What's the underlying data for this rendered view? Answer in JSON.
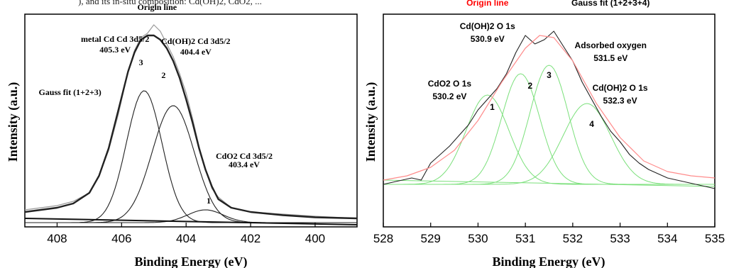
{
  "header_caption": "), and its in-situ composition: Cd(OH)2, CdO2, ...",
  "chart_data": [
    {
      "type": "line",
      "panel": "left",
      "title": "",
      "xlabel": "Binding Energy (eV)",
      "ylabel": "Intensity (a.u.)",
      "xlim": [
        409,
        398.7
      ],
      "x_reversed": true,
      "ylim": [
        0,
        1
      ],
      "y_ticks_shown": false,
      "x_ticks": [
        "408",
        "406",
        "404",
        "402",
        "400"
      ],
      "x_tick_values": [
        408,
        406,
        404,
        402,
        400
      ],
      "grid": false,
      "series": [
        {
          "name": "Origin line",
          "points": [
            [
              409.0,
              0.08
            ],
            [
              408.5,
              0.09
            ],
            [
              408.0,
              0.1
            ],
            [
              407.5,
              0.12
            ],
            [
              407.0,
              0.16
            ],
            [
              406.7,
              0.24
            ],
            [
              406.4,
              0.36
            ],
            [
              406.1,
              0.53
            ],
            [
              405.8,
              0.73
            ],
            [
              405.6,
              0.83
            ],
            [
              405.4,
              0.89
            ],
            [
              405.2,
              0.91
            ],
            [
              405.0,
              0.95
            ],
            [
              404.8,
              0.92
            ],
            [
              404.6,
              0.86
            ],
            [
              404.4,
              0.8
            ],
            [
              404.2,
              0.72
            ],
            [
              404.0,
              0.63
            ],
            [
              403.8,
              0.51
            ],
            [
              403.6,
              0.38
            ],
            [
              403.4,
              0.27
            ],
            [
              403.2,
              0.18
            ],
            [
              403.0,
              0.14
            ],
            [
              402.6,
              0.09
            ],
            [
              402.0,
              0.07
            ],
            [
              401.0,
              0.06
            ],
            [
              400.0,
              0.05
            ],
            [
              398.7,
              0.04
            ]
          ]
        },
        {
          "name": "Gauss fit (1+2+3)",
          "points": [
            [
              409.0,
              0.07
            ],
            [
              408.5,
              0.08
            ],
            [
              408.0,
              0.09
            ],
            [
              407.5,
              0.11
            ],
            [
              407.0,
              0.16
            ],
            [
              406.7,
              0.24
            ],
            [
              406.4,
              0.37
            ],
            [
              406.1,
              0.55
            ],
            [
              405.8,
              0.73
            ],
            [
              405.6,
              0.82
            ],
            [
              405.4,
              0.88
            ],
            [
              405.2,
              0.9
            ],
            [
              405.0,
              0.9
            ],
            [
              404.8,
              0.88
            ],
            [
              404.6,
              0.84
            ],
            [
              404.4,
              0.78
            ],
            [
              404.2,
              0.7
            ],
            [
              404.0,
              0.6
            ],
            [
              403.8,
              0.49
            ],
            [
              403.6,
              0.37
            ],
            [
              403.4,
              0.27
            ],
            [
              403.2,
              0.19
            ],
            [
              403.0,
              0.13
            ],
            [
              402.6,
              0.09
            ],
            [
              402.0,
              0.07
            ],
            [
              401.0,
              0.055
            ],
            [
              400.0,
              0.045
            ],
            [
              398.7,
              0.04
            ]
          ]
        },
        {
          "name": "1",
          "peak": {
            "center": 403.4,
            "height": 0.06,
            "width": 0.55
          }
        },
        {
          "name": "2",
          "peak": {
            "center": 404.4,
            "height": 0.55,
            "width": 0.65
          }
        },
        {
          "name": "3",
          "peak": {
            "center": 405.3,
            "height": 0.62,
            "width": 0.55
          }
        }
      ],
      "annotations": [
        {
          "text": "Origin line",
          "x": 404.9,
          "y": 1.02
        },
        {
          "text": "metal Cd  Cd 3d5/2",
          "x": 406.2,
          "y": 0.87
        },
        {
          "text": "405.3 eV",
          "x": 406.2,
          "y": 0.82
        },
        {
          "text": "Cd(OH)2  Cd 3d5/2",
          "x": 403.7,
          "y": 0.86
        },
        {
          "text": "404.4 eV",
          "x": 403.7,
          "y": 0.81
        },
        {
          "text": "Gauss fit (1+2+3)",
          "x": 407.6,
          "y": 0.62
        },
        {
          "text": "CdO2  Cd 3d5/2",
          "x": 402.2,
          "y": 0.32
        },
        {
          "text": "403.4 eV",
          "x": 402.2,
          "y": 0.28
        },
        {
          "text": "1",
          "x": 403.3,
          "y": 0.11
        },
        {
          "text": "2",
          "x": 404.7,
          "y": 0.7
        },
        {
          "text": "3",
          "x": 405.4,
          "y": 0.76
        }
      ]
    },
    {
      "type": "line",
      "panel": "right",
      "title": "",
      "xlabel": "Binding Energy (eV)",
      "ylabel": "Intensity (a.u.)",
      "xlim": [
        528,
        535
      ],
      "ylim": [
        0,
        1
      ],
      "y_ticks_shown": false,
      "x_ticks": [
        "528",
        "529",
        "530",
        "531",
        "532",
        "533",
        "534",
        "535"
      ],
      "x_tick_values": [
        528,
        529,
        530,
        531,
        532,
        533,
        534,
        535
      ],
      "grid": false,
      "series": [
        {
          "name": "Origin line",
          "points": [
            [
              528.0,
              0.2
            ],
            [
              528.2,
              0.21
            ],
            [
              528.4,
              0.22
            ],
            [
              528.6,
              0.23
            ],
            [
              528.8,
              0.22
            ],
            [
              529.0,
              0.3
            ],
            [
              529.2,
              0.34
            ],
            [
              529.4,
              0.38
            ],
            [
              529.6,
              0.43
            ],
            [
              529.8,
              0.48
            ],
            [
              530.0,
              0.55
            ],
            [
              530.2,
              0.6
            ],
            [
              530.4,
              0.65
            ],
            [
              530.6,
              0.72
            ],
            [
              530.8,
              0.82
            ],
            [
              531.0,
              0.9
            ],
            [
              531.2,
              0.86
            ],
            [
              531.4,
              0.88
            ],
            [
              531.6,
              0.92
            ],
            [
              531.8,
              0.85
            ],
            [
              532.0,
              0.78
            ],
            [
              532.2,
              0.68
            ],
            [
              532.4,
              0.6
            ],
            [
              532.6,
              0.52
            ],
            [
              532.8,
              0.45
            ],
            [
              533.0,
              0.4
            ],
            [
              533.2,
              0.34
            ],
            [
              533.4,
              0.3
            ],
            [
              533.6,
              0.27
            ],
            [
              533.8,
              0.25
            ],
            [
              534.0,
              0.23
            ],
            [
              534.2,
              0.22
            ],
            [
              534.4,
              0.21
            ],
            [
              534.6,
              0.2
            ],
            [
              534.8,
              0.19
            ],
            [
              535.0,
              0.18
            ]
          ]
        },
        {
          "name": "Gauss fit (1+2+3+4)",
          "points": [
            [
              528.0,
              0.22
            ],
            [
              528.5,
              0.24
            ],
            [
              529.0,
              0.28
            ],
            [
              529.5,
              0.36
            ],
            [
              530.0,
              0.5
            ],
            [
              530.5,
              0.68
            ],
            [
              531.0,
              0.84
            ],
            [
              531.3,
              0.9
            ],
            [
              531.6,
              0.89
            ],
            [
              532.0,
              0.78
            ],
            [
              532.5,
              0.58
            ],
            [
              533.0,
              0.42
            ],
            [
              533.5,
              0.31
            ],
            [
              534.0,
              0.26
            ],
            [
              534.5,
              0.24
            ],
            [
              535.0,
              0.23
            ]
          ]
        },
        {
          "name": "1",
          "peak": {
            "center": 530.2,
            "height": 0.42,
            "width": 0.45
          }
        },
        {
          "name": "2",
          "peak": {
            "center": 530.9,
            "height": 0.52,
            "width": 0.4
          }
        },
        {
          "name": "3",
          "peak": {
            "center": 531.5,
            "height": 0.56,
            "width": 0.4
          }
        },
        {
          "name": "4",
          "peak": {
            "center": 532.3,
            "height": 0.38,
            "width": 0.5
          }
        }
      ],
      "annotations": [
        {
          "text": "Origin line",
          "x": 530.2,
          "y": 1.04,
          "color": "#ff0000"
        },
        {
          "text": "Gauss fit (1+2+3+4)",
          "x": 532.8,
          "y": 1.04
        },
        {
          "text": "Cd(OH)2 O 1s",
          "x": 530.2,
          "y": 0.93
        },
        {
          "text": "530.9 eV",
          "x": 530.2,
          "y": 0.87
        },
        {
          "text": "Adsorbed oxygen",
          "x": 532.8,
          "y": 0.84
        },
        {
          "text": "531.5 eV",
          "x": 532.8,
          "y": 0.78
        },
        {
          "text": "CdO2 O 1s",
          "x": 529.4,
          "y": 0.66
        },
        {
          "text": "530.2 eV",
          "x": 529.4,
          "y": 0.6
        },
        {
          "text": "Cd(OH)2 O 1s",
          "x": 533.0,
          "y": 0.64
        },
        {
          "text": "532.3 eV",
          "x": 533.0,
          "y": 0.58
        },
        {
          "text": "1",
          "x": 530.3,
          "y": 0.55
        },
        {
          "text": "2",
          "x": 531.1,
          "y": 0.65
        },
        {
          "text": "3",
          "x": 531.5,
          "y": 0.7
        },
        {
          "text": "4",
          "x": 532.4,
          "y": 0.47
        }
      ]
    }
  ],
  "colors": {
    "left_lines": "#222222",
    "left_origin": "#9a9a9a",
    "right_origin": "#222222",
    "right_fit": "#ff8c8c",
    "right_peaks": "#7be07b",
    "red_label": "#ff0000"
  }
}
